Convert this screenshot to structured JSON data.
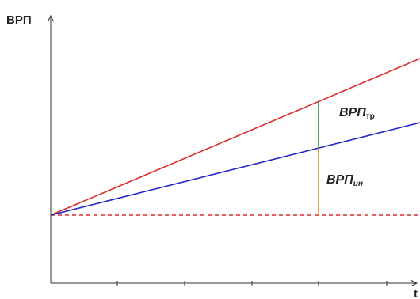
{
  "y_axis_label": "ВРП",
  "x_axis_label": "t",
  "labels": {
    "upper_gap": {
      "main": "ВРП",
      "sub": "тр"
    },
    "lower_gap": {
      "main": "ВРП",
      "sub": "ин"
    }
  },
  "colors": {
    "red_line": "#dd2b2b",
    "blue_line": "#2323c8",
    "green_segment": "#1f9a3a",
    "orange_segment": "#e08a2a",
    "baseline_dashed": "#dd2b2b",
    "axes": "#333333"
  }
}
